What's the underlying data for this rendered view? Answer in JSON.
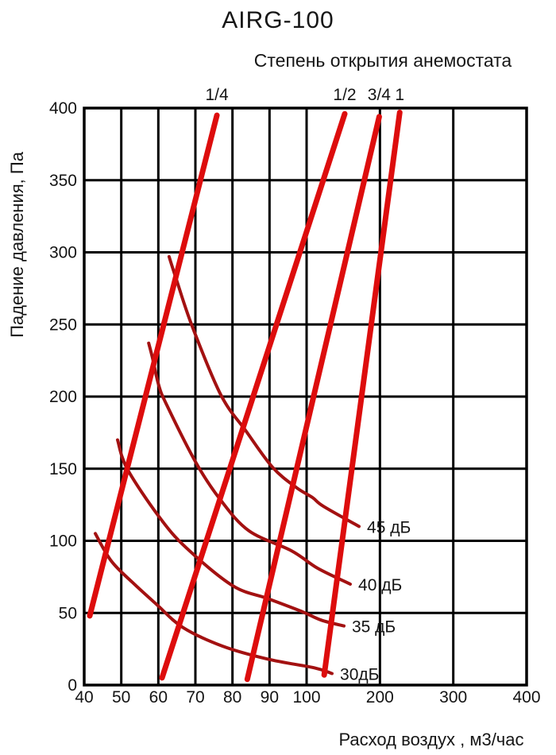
{
  "page": {
    "background": "#ffffff"
  },
  "chart_data": {
    "type": "line",
    "title": "AIRG-100",
    "subtitle": "Степень открытия анемостата",
    "xlabel": "Расход воздух , м3/час",
    "ylabel": "Падение давления, Па",
    "x_ticks": [
      40,
      50,
      60,
      70,
      80,
      90,
      100,
      200,
      300,
      400
    ],
    "y_ticks": [
      0,
      50,
      100,
      150,
      200,
      250,
      300,
      350,
      400
    ],
    "xlim": [
      40,
      400
    ],
    "ylim": [
      0,
      400
    ],
    "x_scale": "segmented: 40-100 evenly spaced, 100-400 evenly spaced",
    "grid": true,
    "legend_position": "labels-on-plot",
    "colors": {
      "opening_line": "#dd0d0d",
      "noise_curve": "#a31111",
      "grid": "#000000",
      "text": "#141414"
    },
    "opening_series": [
      {
        "label": "1/4",
        "points": [
          [
            41.5,
            48
          ],
          [
            75.8,
            395
          ]
        ]
      },
      {
        "label": "1/2",
        "points": [
          [
            61,
            5
          ],
          [
            152,
            396
          ]
        ]
      },
      {
        "label": "3/4",
        "points": [
          [
            84,
            4
          ],
          [
            199,
            394
          ]
        ]
      },
      {
        "label": "1",
        "points": [
          [
            124,
            7
          ],
          [
            227,
            397
          ]
        ]
      }
    ],
    "noise_series": [
      {
        "label": "45 дБ",
        "points": [
          [
            62.9,
            297
          ],
          [
            64.9,
            281
          ],
          [
            69.1,
            249
          ],
          [
            76.9,
            201
          ],
          [
            83.7,
            176
          ],
          [
            90.8,
            151
          ],
          [
            97.2,
            137
          ],
          [
            108,
            130
          ],
          [
            122.7,
            124
          ],
          [
            171.5,
            110
          ]
        ]
      },
      {
        "label": "40 дБ",
        "points": [
          [
            57.4,
            237
          ],
          [
            58.4,
            227
          ],
          [
            60.1,
            208
          ],
          [
            62.3,
            194
          ],
          [
            70.2,
            154
          ],
          [
            76.6,
            129
          ],
          [
            84.4,
            107
          ],
          [
            96,
            93
          ],
          [
            115,
            81
          ],
          [
            159.6,
            70
          ]
        ]
      },
      {
        "label": "35 дБ",
        "points": [
          [
            49,
            170
          ],
          [
            51.6,
            150
          ],
          [
            60.1,
            117
          ],
          [
            67.6,
            95
          ],
          [
            80,
            69
          ],
          [
            89.5,
            60
          ],
          [
            98.7,
            51
          ],
          [
            120,
            45
          ],
          [
            150.9,
            41
          ]
        ]
      },
      {
        "label": "30дБ",
        "points": [
          [
            43,
            105
          ],
          [
            47.3,
            86
          ],
          [
            53.1,
            71
          ],
          [
            59.5,
            56
          ],
          [
            66.6,
            40
          ],
          [
            77.3,
            27
          ],
          [
            89.5,
            18
          ],
          [
            110,
            12
          ],
          [
            134.7,
            8
          ]
        ]
      }
    ]
  }
}
